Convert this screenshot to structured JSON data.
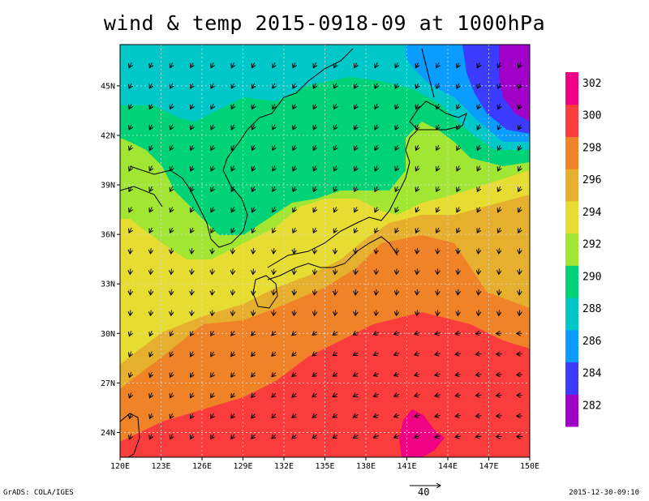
{
  "title": "wind & temp 2015-0918-09 at 1000hPa",
  "footer": {
    "left": "GrADS: COLA/IGES",
    "right": "2015-12-30-09:10"
  },
  "vector_scale": {
    "label": "40"
  },
  "map_data": {
    "type": "filled-contour-with-vectors",
    "extent": {
      "lon": [
        120,
        150
      ],
      "lat": [
        22.5,
        47.5
      ]
    },
    "x_ticks": [
      "120E",
      "123E",
      "126E",
      "129E",
      "132E",
      "135E",
      "138E",
      "141E",
      "144E",
      "147E",
      "150E"
    ],
    "y_ticks": [
      {
        "lat": 24,
        "label": "24N"
      },
      {
        "lat": 27,
        "label": "27N"
      },
      {
        "lat": 30,
        "label": "30N"
      },
      {
        "lat": 33,
        "label": "33N"
      },
      {
        "lat": 36,
        "label": "36N"
      },
      {
        "lat": 39,
        "label": "39N"
      },
      {
        "lat": 42,
        "label": "42N"
      },
      {
        "lat": 45,
        "label": "45N"
      }
    ],
    "grid": true,
    "colorbar": {
      "placement": "right",
      "colors": [
        "#a000c8",
        "#3c3cff",
        "#0a9cff",
        "#00c8c8",
        "#00d278",
        "#a0e632",
        "#e6dc32",
        "#e6af2d",
        "#f08228",
        "#fa3c3c",
        "#f00082"
      ],
      "labels": [
        "282",
        "284",
        "286",
        "288",
        "290",
        "292",
        "294",
        "296",
        "298",
        "300",
        "302"
      ]
    },
    "field_colors": {
      "v282": "#a000c8",
      "v284": "#3c3cff",
      "v286": "#0a9cff",
      "v288": "#00c8c8",
      "v290": "#00d278",
      "v292": "#a0e632",
      "v294": "#e6dc32",
      "v296": "#e6af2d",
      "v298": "#f08228",
      "v300": "#fa3c3c",
      "v302": "#f00082"
    }
  }
}
